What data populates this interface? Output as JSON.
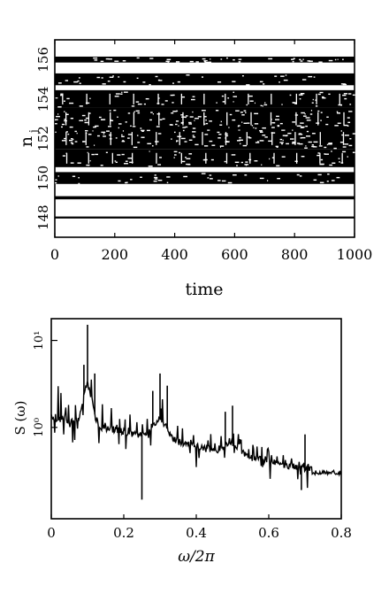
{
  "chart_data": [
    {
      "type": "line",
      "panel": "top",
      "xlabel": "time",
      "ylabel_main": "n",
      "ylabel_sub": "j",
      "xlim": [
        0,
        1000
      ],
      "ylim": [
        147,
        157
      ],
      "x_ticks": [
        0,
        200,
        400,
        600,
        800,
        1000
      ],
      "x_tick_labels": [
        "0",
        "200",
        "400",
        "600",
        "800",
        "1000"
      ],
      "y_ticks": [
        148,
        150,
        152,
        154,
        156
      ],
      "y_tick_labels": [
        "148",
        "150",
        "152",
        "154",
        "156"
      ],
      "grid": false,
      "series": [
        {
          "level": 148,
          "amplitude": 0.05,
          "style": "thin"
        },
        {
          "level": 149,
          "amplitude": 0.08,
          "style": "solid"
        },
        {
          "level": 150,
          "amplitude": 0.3,
          "style": "band"
        },
        {
          "level": 151,
          "amplitude": 0.45,
          "style": "dashed-band"
        },
        {
          "level": 152,
          "amplitude": 0.55,
          "style": "dense-band"
        },
        {
          "level": 153,
          "amplitude": 0.55,
          "style": "dense-band"
        },
        {
          "level": 154,
          "amplitude": 0.45,
          "style": "dashed-band"
        },
        {
          "level": 155,
          "amplitude": 0.3,
          "style": "band"
        },
        {
          "level": 156,
          "amplitude": 0.15,
          "style": "dashed"
        }
      ]
    },
    {
      "type": "line",
      "panel": "bottom",
      "xlabel": "ω/2π",
      "ylabel": "S (ω)",
      "xlim": [
        0,
        0.8
      ],
      "ylim": [
        -1.05,
        1.25
      ],
      "yscale": "log",
      "x_ticks": [
        0,
        0.2,
        0.4,
        0.6,
        0.8
      ],
      "x_tick_labels": [
        "0",
        "0.2",
        "0.4",
        "0.6",
        "0.8"
      ],
      "y_ticks": [
        0,
        1
      ],
      "y_tick_labels": [
        "10⁰",
        "10¹"
      ],
      "grid": false,
      "peaks": [
        {
          "x": 0.1,
          "log10_y": 1.18
        },
        {
          "x": 0.09,
          "log10_y": 0.72
        },
        {
          "x": 0.12,
          "log10_y": 0.62
        },
        {
          "x": 0.3,
          "log10_y": 0.62
        },
        {
          "x": 0.32,
          "log10_y": 0.48
        },
        {
          "x": 0.28,
          "log10_y": 0.42
        },
        {
          "x": 0.5,
          "log10_y": 0.25
        },
        {
          "x": 0.48,
          "log10_y": 0.18
        },
        {
          "x": 0.7,
          "log10_y": -0.08
        },
        {
          "x": 0.25,
          "log10_y": -0.83
        },
        {
          "x": 0.69,
          "log10_y": -0.72
        }
      ]
    }
  ]
}
